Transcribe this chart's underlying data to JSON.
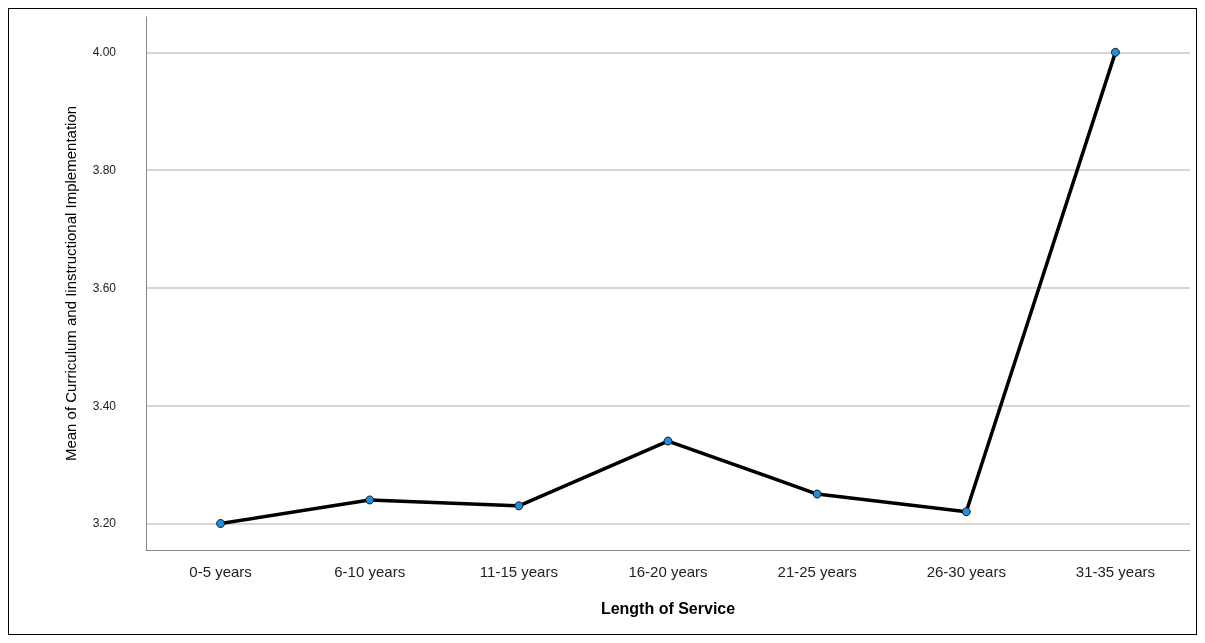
{
  "chart_data": {
    "type": "line",
    "xlabel": "Length of Service",
    "ylabel": "Mean of Curriculum and Iinstructional Implementation",
    "categories": [
      "0-5 years",
      "6-10 years",
      "11-15 years",
      "16-20 years",
      "21-25 years",
      "26-30 years",
      "31-35 years"
    ],
    "series": [
      {
        "color": "#000000",
        "values": [
          3.2,
          3.24,
          3.23,
          3.34,
          3.25,
          3.22,
          4.0
        ]
      }
    ],
    "ylim": [
      3.155,
      4.06
    ],
    "yticks": [
      {
        "value": 3.2,
        "label": "3.20"
      },
      {
        "value": 3.4,
        "label": "3.40"
      },
      {
        "value": 3.6,
        "label": "3.60"
      },
      {
        "value": 3.8,
        "label": "3.80"
      },
      {
        "value": 4.0,
        "label": "4.00"
      }
    ],
    "grid": "y",
    "marker": "circle",
    "line_style": "solid"
  }
}
